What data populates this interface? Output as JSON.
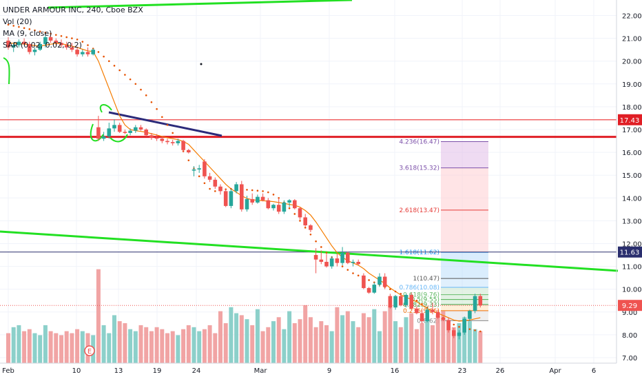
{
  "chart_data": {
    "type": "candlestick",
    "symbol_line": "UNDER ARMOUR INC, 240, Cboe BZX",
    "indicators": [
      "Vol (20)",
      "MA (9, close)",
      "SAR (0.02, 0.02, 0.2)"
    ],
    "y_axis": {
      "side": "right",
      "ylim": [
        7.0,
        22.0
      ],
      "ticks": [
        7.0,
        8.0,
        9.0,
        10.0,
        11.0,
        12.0,
        13.0,
        14.0,
        15.0,
        16.0,
        17.0,
        18.0,
        19.0,
        20.0,
        21.0,
        22.0
      ]
    },
    "x_axis": {
      "tick_labels": [
        "Feb",
        "10",
        "13",
        "19",
        "24",
        "Mar",
        "9",
        "16",
        "23",
        "26",
        "Apr",
        "6"
      ]
    },
    "price_badges": [
      {
        "value": "17.43",
        "color": "#e01e25"
      },
      {
        "value": "11.63",
        "color": "#2a2e6e"
      },
      {
        "value": "9.29",
        "color": "#ef5350"
      }
    ],
    "horizontal_lines": [
      {
        "price": 17.43,
        "color": "#f06263"
      },
      {
        "price": 16.68,
        "color": "#e01e25"
      },
      {
        "price": 11.63,
        "color": "#2a2e6e"
      }
    ],
    "fibonacci_extension": {
      "levels": [
        {
          "ratio": "4.236",
          "price": 16.47,
          "label": "4.236(16.47)",
          "color": "#7b4fa8"
        },
        {
          "ratio": "3.618",
          "price": 15.32,
          "label": "3.618(15.32)",
          "color": "#7b4fa8"
        },
        {
          "ratio": "2.618",
          "price": 13.47,
          "label": "2.618(13.47)",
          "color": "#e53935"
        },
        {
          "ratio": "1.618",
          "price": 11.62,
          "label": "1.618(11.62)",
          "color": "#2196f3"
        },
        {
          "ratio": "1",
          "price": 10.47,
          "label": "1(10.47)",
          "color": "#555555"
        },
        {
          "ratio": "0.786",
          "price": 10.08,
          "label": "0.786(10.08)",
          "color": "#64b5f6"
        },
        {
          "ratio": "0.618",
          "price": 9.76,
          "label": "0.618(9.76)",
          "color": "#66bb6a"
        },
        {
          "ratio": "0.5",
          "price": 9.55,
          "label": "0.5(9.55)",
          "color": "#4caf50"
        },
        {
          "ratio": "0.382",
          "price": 9.33,
          "label": "0.382(9.33)",
          "color": "#43a047"
        },
        {
          "ratio": "0.236",
          "price": 9.06,
          "label": "0.236(9.06)",
          "color": "#ef6c00"
        },
        {
          "ratio": "0",
          "price": 8.62,
          "label": "0(8.62)",
          "color": "#888888"
        }
      ]
    },
    "candles": [
      {
        "o": 20.9,
        "h": 21.05,
        "l": 20.5,
        "c": 20.6
      },
      {
        "o": 20.6,
        "h": 20.8,
        "l": 20.4,
        "c": 20.7
      },
      {
        "o": 20.7,
        "h": 20.95,
        "l": 20.6,
        "c": 20.85
      },
      {
        "o": 20.85,
        "h": 21.0,
        "l": 20.7,
        "c": 20.75
      },
      {
        "o": 20.75,
        "h": 20.85,
        "l": 20.3,
        "c": 20.4
      },
      {
        "o": 20.4,
        "h": 20.6,
        "l": 20.25,
        "c": 20.5
      },
      {
        "o": 20.5,
        "h": 20.85,
        "l": 20.45,
        "c": 20.75
      },
      {
        "o": 20.75,
        "h": 21.2,
        "l": 20.6,
        "c": 21.05
      },
      {
        "o": 21.05,
        "h": 21.15,
        "l": 20.8,
        "c": 20.9
      },
      {
        "o": 20.9,
        "h": 21.0,
        "l": 20.7,
        "c": 20.8
      },
      {
        "o": 20.8,
        "h": 20.95,
        "l": 20.6,
        "c": 20.7
      },
      {
        "o": 20.7,
        "h": 20.85,
        "l": 20.5,
        "c": 20.6
      },
      {
        "o": 20.6,
        "h": 20.8,
        "l": 20.4,
        "c": 20.5
      },
      {
        "o": 20.5,
        "h": 20.6,
        "l": 20.2,
        "c": 20.3
      },
      {
        "o": 20.3,
        "h": 20.5,
        "l": 20.2,
        "c": 20.4
      },
      {
        "o": 20.4,
        "h": 20.6,
        "l": 20.2,
        "c": 20.3
      },
      {
        "o": 20.3,
        "h": 20.55,
        "l": 20.25,
        "c": 20.5
      },
      {
        "o": 17.1,
        "h": 17.6,
        "l": 16.5,
        "c": 16.6
      },
      {
        "o": 16.6,
        "h": 16.9,
        "l": 16.5,
        "c": 16.7
      },
      {
        "o": 16.7,
        "h": 17.3,
        "l": 16.6,
        "c": 17.05
      },
      {
        "o": 17.05,
        "h": 17.45,
        "l": 16.9,
        "c": 17.2
      },
      {
        "o": 17.2,
        "h": 17.3,
        "l": 16.85,
        "c": 16.9
      },
      {
        "o": 16.9,
        "h": 17.0,
        "l": 16.8,
        "c": 16.85
      },
      {
        "o": 16.85,
        "h": 17.05,
        "l": 16.75,
        "c": 16.95
      },
      {
        "o": 16.95,
        "h": 17.2,
        "l": 16.85,
        "c": 17.1
      },
      {
        "o": 17.1,
        "h": 17.2,
        "l": 16.95,
        "c": 17.0
      },
      {
        "o": 17.0,
        "h": 17.05,
        "l": 16.7,
        "c": 16.75
      },
      {
        "o": 16.75,
        "h": 16.85,
        "l": 16.55,
        "c": 16.65
      },
      {
        "o": 16.65,
        "h": 16.8,
        "l": 16.5,
        "c": 16.6
      },
      {
        "o": 16.6,
        "h": 16.7,
        "l": 16.4,
        "c": 16.5
      },
      {
        "o": 16.5,
        "h": 16.6,
        "l": 16.35,
        "c": 16.45
      },
      {
        "o": 16.45,
        "h": 16.55,
        "l": 16.3,
        "c": 16.4
      },
      {
        "o": 16.4,
        "h": 16.6,
        "l": 16.3,
        "c": 16.5
      },
      {
        "o": 16.5,
        "h": 16.55,
        "l": 16.0,
        "c": 16.1
      },
      {
        "o": 16.1,
        "h": 16.15,
        "l": 15.95,
        "c": 16.0
      },
      {
        "o": 15.2,
        "h": 15.4,
        "l": 14.95,
        "c": 15.25
      },
      {
        "o": 15.25,
        "h": 15.45,
        "l": 15.1,
        "c": 15.3
      },
      {
        "o": 15.6,
        "h": 15.7,
        "l": 14.85,
        "c": 14.95
      },
      {
        "o": 14.95,
        "h": 15.1,
        "l": 14.7,
        "c": 14.8
      },
      {
        "o": 14.8,
        "h": 14.9,
        "l": 14.4,
        "c": 14.5
      },
      {
        "o": 14.5,
        "h": 14.6,
        "l": 14.15,
        "c": 14.3
      },
      {
        "o": 14.3,
        "h": 14.4,
        "l": 13.6,
        "c": 13.65
      },
      {
        "o": 13.65,
        "h": 14.4,
        "l": 13.55,
        "c": 14.3
      },
      {
        "o": 14.3,
        "h": 14.7,
        "l": 14.2,
        "c": 14.6
      },
      {
        "o": 14.6,
        "h": 14.75,
        "l": 13.4,
        "c": 13.5
      },
      {
        "o": 13.5,
        "h": 14.1,
        "l": 13.4,
        "c": 13.95
      },
      {
        "o": 13.95,
        "h": 14.2,
        "l": 13.7,
        "c": 13.8
      },
      {
        "o": 13.8,
        "h": 14.15,
        "l": 13.75,
        "c": 14.05
      },
      {
        "o": 14.05,
        "h": 14.2,
        "l": 13.85,
        "c": 13.9
      },
      {
        "o": 13.9,
        "h": 14.0,
        "l": 13.5,
        "c": 13.55
      },
      {
        "o": 13.55,
        "h": 13.75,
        "l": 13.45,
        "c": 13.7
      },
      {
        "o": 13.7,
        "h": 14.0,
        "l": 13.3,
        "c": 13.4
      },
      {
        "o": 13.4,
        "h": 13.9,
        "l": 13.3,
        "c": 13.8
      },
      {
        "o": 13.8,
        "h": 13.95,
        "l": 13.6,
        "c": 13.9
      },
      {
        "o": 13.9,
        "h": 13.95,
        "l": 13.5,
        "c": 13.55
      },
      {
        "o": 13.55,
        "h": 13.6,
        "l": 13.05,
        "c": 13.15
      },
      {
        "o": 13.15,
        "h": 13.3,
        "l": 12.75,
        "c": 12.8
      },
      {
        "o": 12.8,
        "h": 12.85,
        "l": 12.5,
        "c": 12.6
      },
      {
        "o": 11.5,
        "h": 11.8,
        "l": 10.7,
        "c": 11.3
      },
      {
        "o": 11.3,
        "h": 11.7,
        "l": 11.1,
        "c": 11.2
      },
      {
        "o": 11.2,
        "h": 11.55,
        "l": 10.95,
        "c": 11.0
      },
      {
        "o": 11.0,
        "h": 11.45,
        "l": 10.9,
        "c": 11.35
      },
      {
        "o": 11.35,
        "h": 11.55,
        "l": 11.0,
        "c": 11.15
      },
      {
        "o": 11.15,
        "h": 11.85,
        "l": 11.05,
        "c": 11.6
      },
      {
        "o": 11.6,
        "h": 11.65,
        "l": 11.1,
        "c": 11.15
      },
      {
        "o": 11.15,
        "h": 11.3,
        "l": 11.0,
        "c": 11.2
      },
      {
        "o": 11.2,
        "h": 11.3,
        "l": 11.05,
        "c": 11.1
      },
      {
        "o": 10.6,
        "h": 10.7,
        "l": 10.0,
        "c": 10.05
      },
      {
        "o": 10.05,
        "h": 10.1,
        "l": 9.8,
        "c": 9.85
      },
      {
        "o": 9.85,
        "h": 10.3,
        "l": 9.8,
        "c": 10.2
      },
      {
        "o": 10.2,
        "h": 10.7,
        "l": 10.1,
        "c": 10.55
      },
      {
        "o": 10.55,
        "h": 10.7,
        "l": 10.0,
        "c": 10.1
      },
      {
        "o": 9.7,
        "h": 9.8,
        "l": 9.15,
        "c": 9.2
      },
      {
        "o": 9.2,
        "h": 9.75,
        "l": 9.1,
        "c": 9.7
      },
      {
        "o": 9.7,
        "h": 9.8,
        "l": 9.25,
        "c": 9.3
      },
      {
        "o": 9.3,
        "h": 9.8,
        "l": 9.2,
        "c": 9.75
      },
      {
        "o": 9.75,
        "h": 9.85,
        "l": 9.1,
        "c": 9.15
      },
      {
        "o": 9.15,
        "h": 9.25,
        "l": 8.9,
        "c": 8.95
      },
      {
        "o": 8.95,
        "h": 9.1,
        "l": 8.5,
        "c": 8.6
      },
      {
        "o": 8.6,
        "h": 9.2,
        "l": 8.55,
        "c": 9.1
      },
      {
        "o": 9.1,
        "h": 9.4,
        "l": 8.9,
        "c": 9.0
      },
      {
        "o": 9.0,
        "h": 9.1,
        "l": 8.7,
        "c": 8.75
      },
      {
        "o": 8.75,
        "h": 8.8,
        "l": 8.6,
        "c": 8.65
      },
      {
        "o": 8.65,
        "h": 8.75,
        "l": 8.1,
        "c": 8.2
      },
      {
        "o": 8.2,
        "h": 8.3,
        "l": 7.85,
        "c": 7.95
      },
      {
        "o": 7.95,
        "h": 8.2,
        "l": 7.8,
        "c": 8.1
      },
      {
        "o": 8.1,
        "h": 8.8,
        "l": 8.0,
        "c": 8.7
      },
      {
        "o": 8.7,
        "h": 9.1,
        "l": 8.6,
        "c": 9.05
      },
      {
        "o": 9.05,
        "h": 9.8,
        "l": 8.95,
        "c": 9.7
      },
      {
        "o": 9.7,
        "h": 9.8,
        "l": 9.2,
        "c": 9.29
      }
    ],
    "moving_average_9": [
      20.8,
      20.78,
      20.76,
      20.75,
      20.72,
      20.68,
      20.66,
      20.7,
      20.74,
      20.78,
      20.76,
      20.72,
      20.66,
      20.6,
      20.52,
      20.45,
      20.42,
      20.0,
      19.4,
      18.8,
      18.2,
      17.6,
      17.2,
      17.0,
      16.95,
      16.92,
      16.88,
      16.82,
      16.76,
      16.7,
      16.64,
      16.6,
      16.56,
      16.48,
      16.35,
      16.1,
      15.85,
      15.6,
      15.35,
      15.1,
      14.85,
      14.6,
      14.4,
      14.25,
      14.1,
      13.98,
      13.92,
      13.9,
      13.88,
      13.86,
      13.84,
      13.8,
      13.76,
      13.72,
      13.68,
      13.6,
      13.45,
      13.25,
      12.95,
      12.6,
      12.25,
      11.9,
      11.6,
      11.4,
      11.25,
      11.15,
      11.05,
      10.9,
      10.7,
      10.55,
      10.4,
      10.25,
      10.05,
      9.9,
      9.75,
      9.65,
      9.55,
      9.45,
      9.3,
      9.15,
      9.05,
      8.95,
      8.85,
      8.75,
      8.65,
      8.6,
      8.62,
      8.65,
      8.7,
      8.75
    ],
    "parabolic_sar": [
      21.6,
      21.55,
      21.5,
      21.45,
      21.4,
      21.35,
      21.3,
      21.25,
      21.2,
      21.15,
      21.1,
      21.05,
      21.0,
      20.95,
      20.85,
      20.7,
      20.55,
      20.4,
      20.2,
      20.0,
      19.8,
      19.6,
      19.4,
      19.2,
      19.0,
      18.75,
      18.5,
      18.2,
      17.9,
      17.55,
      17.2,
      16.85,
      16.45,
      16.05,
      15.65,
      15.3,
      14.95,
      14.65,
      14.4,
      14.3,
      14.35,
      14.38,
      14.4,
      14.4,
      14.38,
      14.36,
      14.34,
      14.32,
      14.3,
      14.25,
      14.15,
      14.0,
      13.8,
      13.55,
      13.3,
      13.0,
      12.7,
      12.4,
      12.1,
      11.85,
      11.6,
      11.4,
      11.2,
      11.0,
      10.85,
      10.7,
      10.6,
      10.5,
      10.4,
      10.3,
      10.2,
      10.1,
      10.0,
      9.9,
      9.8,
      9.7,
      9.6,
      9.5,
      9.35,
      9.2,
      9.05,
      8.9,
      8.75,
      8.6,
      8.45,
      8.35,
      8.3,
      8.25,
      8.2,
      8.15
    ],
    "volume": [
      1.5,
      1.8,
      1.9,
      1.6,
      1.7,
      1.5,
      1.4,
      1.9,
      1.6,
      1.5,
      1.4,
      1.6,
      1.5,
      1.7,
      1.6,
      1.5,
      1.4,
      4.7,
      1.9,
      1.5,
      2.4,
      2.1,
      2.0,
      1.7,
      1.6,
      1.9,
      1.8,
      1.6,
      1.8,
      1.7,
      1.5,
      1.6,
      1.4,
      1.7,
      1.9,
      1.8,
      1.6,
      1.7,
      1.9,
      1.5,
      2.6,
      2.0,
      2.8,
      2.5,
      2.4,
      2.2,
      1.9,
      2.7,
      1.6,
      1.8,
      2.1,
      2.3,
      1.7,
      2.6,
      2.0,
      2.2,
      2.9,
      2.3,
      1.8,
      2.1,
      1.9,
      1.6,
      2.8,
      2.4,
      2.6,
      2.1,
      1.8,
      2.5,
      2.3,
      2.7,
      1.6,
      2.6,
      2.9,
      2.1,
      1.8,
      2.3,
      2.5,
      1.7,
      2.0,
      2.2,
      1.9,
      2.4,
      2.6,
      2.1,
      1.8,
      2.0,
      2.3,
      2.1,
      1.7,
      1.6
    ]
  }
}
